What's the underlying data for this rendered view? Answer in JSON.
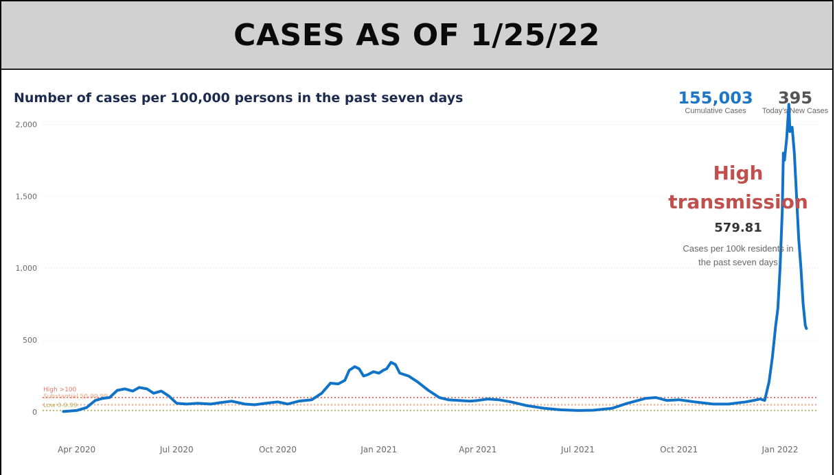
{
  "banner": {
    "title": "CASES AS OF 1/25/22"
  },
  "chart_title": "Number of cases per 100,000 persons in the past seven days",
  "kpis": {
    "cumulative": {
      "value": "155,003",
      "label": "Cumulative Cases",
      "color": "#1f77c4"
    },
    "new_today": {
      "value": "395",
      "label": "Today's New Cases",
      "color": "#555555"
    }
  },
  "transmission": {
    "level_line1": "High",
    "level_line2": "transmission",
    "value": "579.81",
    "desc_line1": "Cases per 100k residents in",
    "desc_line2": "the past seven days"
  },
  "chart_data": {
    "type": "line",
    "title": "Number of cases per 100,000 persons in the past seven days",
    "xlabel": "",
    "ylabel": "",
    "ylim": [
      0,
      2150
    ],
    "grid": true,
    "yticks": [
      0,
      500,
      1000,
      1500,
      2000
    ],
    "ytick_labels": [
      "0",
      "500",
      "1,000",
      "1,500",
      "2,000"
    ],
    "xticks": [
      "2020-04-01",
      "2020-07-01",
      "2020-10-01",
      "2021-01-01",
      "2021-04-01",
      "2021-07-01",
      "2021-10-01",
      "2022-01-01"
    ],
    "xtick_labels": [
      "Apr 2020",
      "Jul 2020",
      "Oct 2020",
      "Jan 2021",
      "Apr 2021",
      "Jul 2021",
      "Oct 2021",
      "Jan 2022"
    ],
    "thresholds": [
      {
        "label": "High >100",
        "value": 100,
        "color": "#e8776b"
      },
      {
        "label": "Substantial 50-99.99",
        "value": 50,
        "color": "#f0a07a"
      },
      {
        "label": "Low 0-9.99",
        "value": 10,
        "color": "#b8b870"
      }
    ],
    "series": [
      {
        "color": "#1173c7",
        "points": [
          [
            "2020-03-20",
            3
          ],
          [
            "2020-04-01",
            10
          ],
          [
            "2020-04-10",
            30
          ],
          [
            "2020-04-18",
            80
          ],
          [
            "2020-04-25",
            95
          ],
          [
            "2020-05-01",
            100
          ],
          [
            "2020-05-08",
            150
          ],
          [
            "2020-05-15",
            160
          ],
          [
            "2020-05-22",
            145
          ],
          [
            "2020-05-28",
            170
          ],
          [
            "2020-06-04",
            160
          ],
          [
            "2020-06-10",
            130
          ],
          [
            "2020-06-17",
            145
          ],
          [
            "2020-06-24",
            110
          ],
          [
            "2020-07-01",
            60
          ],
          [
            "2020-07-10",
            55
          ],
          [
            "2020-07-20",
            60
          ],
          [
            "2020-08-01",
            55
          ],
          [
            "2020-08-10",
            65
          ],
          [
            "2020-08-20",
            75
          ],
          [
            "2020-09-01",
            55
          ],
          [
            "2020-09-10",
            50
          ],
          [
            "2020-09-20",
            60
          ],
          [
            "2020-10-01",
            70
          ],
          [
            "2020-10-10",
            55
          ],
          [
            "2020-10-20",
            75
          ],
          [
            "2020-11-01",
            85
          ],
          [
            "2020-11-10",
            130
          ],
          [
            "2020-11-18",
            200
          ],
          [
            "2020-11-25",
            195
          ],
          [
            "2020-12-01",
            220
          ],
          [
            "2020-12-05",
            290
          ],
          [
            "2020-12-10",
            315
          ],
          [
            "2020-12-14",
            300
          ],
          [
            "2020-12-18",
            250
          ],
          [
            "2020-12-22",
            260
          ],
          [
            "2020-12-27",
            280
          ],
          [
            "2021-01-01",
            270
          ],
          [
            "2021-01-05",
            290
          ],
          [
            "2021-01-08",
            300
          ],
          [
            "2021-01-12",
            345
          ],
          [
            "2021-01-16",
            330
          ],
          [
            "2021-01-20",
            270
          ],
          [
            "2021-01-28",
            250
          ],
          [
            "2021-02-05",
            210
          ],
          [
            "2021-02-15",
            150
          ],
          [
            "2021-02-25",
            100
          ],
          [
            "2021-03-05",
            85
          ],
          [
            "2021-03-15",
            80
          ],
          [
            "2021-03-25",
            75
          ],
          [
            "2021-04-01",
            80
          ],
          [
            "2021-04-10",
            90
          ],
          [
            "2021-04-20",
            85
          ],
          [
            "2021-05-01",
            70
          ],
          [
            "2021-05-15",
            45
          ],
          [
            "2021-06-01",
            25
          ],
          [
            "2021-06-15",
            15
          ],
          [
            "2021-07-01",
            10
          ],
          [
            "2021-07-15",
            12
          ],
          [
            "2021-08-01",
            25
          ],
          [
            "2021-08-15",
            60
          ],
          [
            "2021-09-01",
            95
          ],
          [
            "2021-09-10",
            100
          ],
          [
            "2021-09-20",
            80
          ],
          [
            "2021-10-01",
            85
          ],
          [
            "2021-10-15",
            70
          ],
          [
            "2021-11-01",
            55
          ],
          [
            "2021-11-15",
            55
          ],
          [
            "2021-12-01",
            70
          ],
          [
            "2021-12-08",
            80
          ],
          [
            "2021-12-14",
            90
          ],
          [
            "2021-12-18",
            80
          ],
          [
            "2021-12-22",
            210
          ],
          [
            "2021-12-25",
            380
          ],
          [
            "2021-12-28",
            600
          ],
          [
            "2021-12-30",
            720
          ],
          [
            "2022-01-01",
            1000
          ],
          [
            "2022-01-03",
            1400
          ],
          [
            "2022-01-04",
            1800
          ],
          [
            "2022-01-05",
            1750
          ],
          [
            "2022-01-07",
            1900
          ],
          [
            "2022-01-09",
            2140
          ],
          [
            "2022-01-10",
            1950
          ],
          [
            "2022-01-12",
            1980
          ],
          [
            "2022-01-14",
            1800
          ],
          [
            "2022-01-16",
            1500
          ],
          [
            "2022-01-18",
            1200
          ],
          [
            "2022-01-20",
            1000
          ],
          [
            "2022-01-22",
            750
          ],
          [
            "2022-01-24",
            600
          ],
          [
            "2022-01-25",
            580
          ]
        ]
      }
    ]
  }
}
